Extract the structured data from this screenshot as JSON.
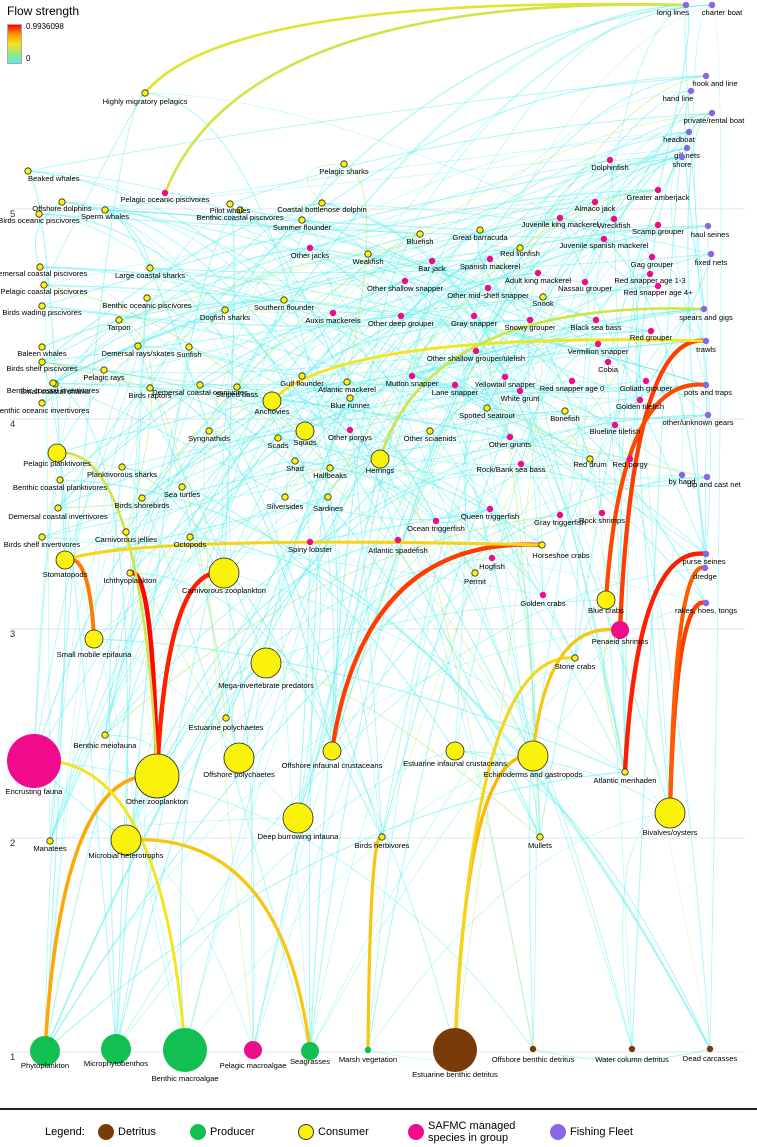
{
  "colorbar": {
    "title": "Flow strength",
    "max": "0.9936098",
    "min": "0",
    "gradient": [
      "#ff0000",
      "#ff9900",
      "#f2e41d",
      "#9ee67a",
      "#55ecec"
    ]
  },
  "colors": {
    "detritus": "#7a3b0a",
    "producer": "#11c050",
    "consumer": "#fbf20b",
    "safmc": "#f00a8c",
    "fleet": "#8866e6",
    "edge_base": "#66f0ef"
  },
  "trophic_levels": [
    "1",
    "2",
    "3",
    "4",
    "5"
  ],
  "legend": {
    "title": "Legend:",
    "items": [
      {
        "label": "Detritus",
        "color": "#7a3b0a"
      },
      {
        "label": "Producer",
        "color": "#11c050"
      },
      {
        "label": "Consumer",
        "color": "#fbf20b"
      },
      {
        "label": "SAFMC managed species in group",
        "line1": "SAFMC managed",
        "line2": "species in group",
        "color": "#f00a8c"
      },
      {
        "label": "Fishing Fleet",
        "color": "#8866e6"
      }
    ]
  },
  "nodes": [
    {
      "name": "Phytoplankton",
      "type": "producer",
      "size": "m"
    },
    {
      "name": "Microphytobenthos",
      "type": "producer",
      "size": "m"
    },
    {
      "name": "Benthic macroalgae",
      "type": "producer",
      "size": "l"
    },
    {
      "name": "Pelagic macroalgae",
      "type": "safmc",
      "size": "s"
    },
    {
      "name": "Seagrasses",
      "type": "producer",
      "size": "s"
    },
    {
      "name": "Marsh vegetation",
      "type": "producer",
      "size": "xs"
    },
    {
      "name": "Estuarine benthic detritus",
      "type": "detritus",
      "size": "l"
    },
    {
      "name": "Offshore benthic detritus",
      "type": "detritus",
      "size": "xs"
    },
    {
      "name": "Water column detritus",
      "type": "detritus",
      "size": "xs"
    },
    {
      "name": "Dead carcasses",
      "type": "detritus",
      "size": "xs"
    },
    {
      "name": "Encrusting fauna",
      "type": "safmc",
      "size": "xl"
    },
    {
      "name": "Other zooplankton",
      "type": "consumer",
      "size": "l"
    },
    {
      "name": "Manatees",
      "type": "consumer",
      "size": "xs"
    },
    {
      "name": "Microbial heterotrophs",
      "type": "consumer",
      "size": "m"
    },
    {
      "name": "Benthic meiofauna",
      "type": "consumer",
      "size": "xs"
    },
    {
      "name": "Offshore polychaetes",
      "type": "consumer",
      "size": "m"
    },
    {
      "name": "Estuarine polychaetes",
      "type": "consumer",
      "size": "xs"
    },
    {
      "name": "Deep burrowing infauna",
      "type": "consumer",
      "size": "m"
    },
    {
      "name": "Birds herbivores",
      "type": "consumer",
      "size": "xs"
    },
    {
      "name": "Offshore infaunal crustaceans",
      "type": "consumer",
      "size": "s"
    },
    {
      "name": "Estuarine infaunal crustaceans",
      "type": "consumer",
      "size": "s"
    },
    {
      "name": "Echinoderms and gastropods",
      "type": "consumer",
      "size": "m"
    },
    {
      "name": "Mullets",
      "type": "consumer",
      "size": "xs"
    },
    {
      "name": "Atlantic menhaden",
      "type": "consumer",
      "size": "xs"
    },
    {
      "name": "Bivalves/oysters",
      "type": "consumer",
      "size": "m"
    },
    {
      "name": "Small mobile epifauna",
      "type": "consumer",
      "size": "s"
    },
    {
      "name": "Mega-invertebrate predators",
      "type": "consumer",
      "size": "m"
    },
    {
      "name": "Stone crabs",
      "type": "consumer",
      "size": "xs"
    },
    {
      "name": "Penaeid shrimps",
      "type": "safmc",
      "size": "s"
    },
    {
      "name": "Stomatopods",
      "type": "consumer",
      "size": "s"
    },
    {
      "name": "Ichthyoplankton",
      "type": "consumer",
      "size": "xs"
    },
    {
      "name": "Carnivorous zooplankton",
      "type": "consumer",
      "size": "m"
    },
    {
      "name": "Spiny lobster",
      "type": "safmc",
      "size": "xs"
    },
    {
      "name": "Atlantic spadefish",
      "type": "safmc",
      "size": "xs"
    },
    {
      "name": "Horseshoe crabs",
      "type": "consumer",
      "size": "xs"
    },
    {
      "name": "Hogfish",
      "type": "safmc",
      "size": "xs"
    },
    {
      "name": "Permit",
      "type": "consumer",
      "size": "xs"
    },
    {
      "name": "Golden crabs",
      "type": "safmc",
      "size": "xs"
    },
    {
      "name": "Blue crabs",
      "type": "consumer",
      "size": "s"
    },
    {
      "name": "Birds shelf invertivores",
      "type": "consumer",
      "size": "xs"
    },
    {
      "name": "Carnivorous jellies",
      "type": "consumer",
      "size": "xs"
    },
    {
      "name": "Octopods",
      "type": "consumer",
      "size": "xs"
    },
    {
      "name": "Demersal coastal invertivores",
      "type": "consumer",
      "size": "xs"
    },
    {
      "name": "Birds shorebirds",
      "type": "consumer",
      "size": "xs"
    },
    {
      "name": "Silversides",
      "type": "consumer",
      "size": "xs"
    },
    {
      "name": "Sardines",
      "type": "consumer",
      "size": "xs"
    },
    {
      "name": "Ocean triggerfish",
      "type": "safmc",
      "size": "xs"
    },
    {
      "name": "Queen triggerfish",
      "type": "safmc",
      "size": "xs"
    },
    {
      "name": "Gray triggerfish",
      "type": "safmc",
      "size": "xs"
    },
    {
      "name": "Rock shrimps",
      "type": "safmc",
      "size": "xs"
    },
    {
      "name": "Benthic coastal planktivores",
      "type": "consumer",
      "size": "xs"
    },
    {
      "name": "Pelagic planktivores",
      "type": "consumer",
      "size": "s"
    },
    {
      "name": "Planktivorous sharks",
      "type": "consumer",
      "size": "xs"
    },
    {
      "name": "Sea turtles",
      "type": "consumer",
      "size": "xs"
    },
    {
      "name": "Syngnathids",
      "type": "consumer",
      "size": "xs"
    },
    {
      "name": "Shad",
      "type": "consumer",
      "size": "xs"
    },
    {
      "name": "Halfbeaks",
      "type": "consumer",
      "size": "xs"
    },
    {
      "name": "Herrings",
      "type": "consumer",
      "size": "s"
    },
    {
      "name": "Rock/Bank sea bass",
      "type": "safmc",
      "size": "xs"
    },
    {
      "name": "Red drum",
      "type": "consumer",
      "size": "xs"
    },
    {
      "name": "Red porgy",
      "type": "safmc",
      "size": "xs"
    },
    {
      "name": "Benthic oceanic invertivores",
      "type": "consumer",
      "size": "xs"
    },
    {
      "name": "Scads",
      "type": "consumer",
      "size": "xs"
    },
    {
      "name": "Squids",
      "type": "consumer",
      "size": "s"
    },
    {
      "name": "Other porgys",
      "type": "safmc",
      "size": "xs"
    },
    {
      "name": "Other sciaenids",
      "type": "consumer",
      "size": "xs"
    },
    {
      "name": "Other grunts",
      "type": "safmc",
      "size": "xs"
    },
    {
      "name": "Blueline tilefish",
      "type": "safmc",
      "size": "xs"
    },
    {
      "name": "Small coastal sharks",
      "type": "consumer",
      "size": "xs"
    },
    {
      "name": "Pelagic rays",
      "type": "consumer",
      "size": "xs"
    },
    {
      "name": "Demersal coastal omnivores",
      "type": "consumer",
      "size": "xs"
    },
    {
      "name": "Anchovies",
      "type": "consumer",
      "size": "s"
    },
    {
      "name": "Blue runner",
      "type": "consumer",
      "size": "xs"
    },
    {
      "name": "Spotted seatrout",
      "type": "consumer",
      "size": "xs"
    },
    {
      "name": "Bonefish",
      "type": "consumer",
      "size": "xs"
    },
    {
      "name": "Golden tilefish",
      "type": "safmc",
      "size": "xs"
    },
    {
      "name": "Benthic coastal invertivores",
      "type": "consumer",
      "size": "xs"
    },
    {
      "name": "Birds raptors",
      "type": "consumer",
      "size": "xs"
    },
    {
      "name": "Striped bass",
      "type": "consumer",
      "size": "xs"
    },
    {
      "name": "Gulf flounder",
      "type": "consumer",
      "size": "xs"
    },
    {
      "name": "Atlantic mackerel",
      "type": "consumer",
      "size": "xs"
    },
    {
      "name": "Mutton snapper",
      "type": "safmc",
      "size": "xs"
    },
    {
      "name": "Lane snapper",
      "type": "safmc",
      "size": "xs"
    },
    {
      "name": "Yellowtail snapper",
      "type": "safmc",
      "size": "xs"
    },
    {
      "name": "White grunt",
      "type": "safmc",
      "size": "xs"
    },
    {
      "name": "Red snapper age 0",
      "type": "safmc",
      "size": "xs"
    },
    {
      "name": "Cobia",
      "type": "safmc",
      "size": "xs"
    },
    {
      "name": "Goliath grouper",
      "type": "safmc",
      "size": "xs"
    },
    {
      "name": "Baleen whales",
      "type": "consumer",
      "size": "xs"
    },
    {
      "name": "Birds shelf piscivores",
      "type": "consumer",
      "size": "xs"
    },
    {
      "name": "Demersal rays/skates",
      "type": "consumer",
      "size": "xs"
    },
    {
      "name": "Sunfish",
      "type": "consumer",
      "size": "xs"
    },
    {
      "name": "Other shallow grouper/tilefish",
      "type": "safmc",
      "size": "xs"
    },
    {
      "name": "Vermilion snapper",
      "type": "safmc",
      "size": "xs"
    },
    {
      "name": "Tarpon",
      "type": "consumer",
      "size": "xs"
    },
    {
      "name": "Benthic oceanic piscivores",
      "type": "consumer",
      "size": "xs"
    },
    {
      "name": "Dogfish sharks",
      "type": "consumer",
      "size": "xs"
    },
    {
      "name": "Southern flounder",
      "type": "consumer",
      "size": "xs"
    },
    {
      "name": "Auxis mackerels",
      "type": "safmc",
      "size": "xs"
    },
    {
      "name": "Other deep grouper",
      "type": "safmc",
      "size": "xs"
    },
    {
      "name": "Gray snapper",
      "type": "safmc",
      "size": "xs"
    },
    {
      "name": "Snowy grouper",
      "type": "safmc",
      "size": "xs"
    },
    {
      "name": "Black sea bass",
      "type": "safmc",
      "size": "xs"
    },
    {
      "name": "Red grouper",
      "type": "safmc",
      "size": "xs"
    },
    {
      "name": "Birds wading piscivores",
      "type": "consumer",
      "size": "xs"
    },
    {
      "name": "Pelagic coastal piscivores",
      "type": "consumer",
      "size": "xs"
    },
    {
      "name": "Large coastal sharks",
      "type": "consumer",
      "size": "xs"
    },
    {
      "name": "Other shallow snapper",
      "type": "safmc",
      "size": "xs"
    },
    {
      "name": "Other mid-shelf snapper",
      "type": "safmc",
      "size": "xs"
    },
    {
      "name": "Snook",
      "type": "consumer",
      "size": "xs"
    },
    {
      "name": "Nassau grouper",
      "type": "safmc",
      "size": "xs"
    },
    {
      "name": "Red snapper age 1-3",
      "type": "safmc",
      "size": "xs"
    },
    {
      "name": "Red snapper age 4+",
      "type": "safmc",
      "size": "xs"
    },
    {
      "name": "Demersal coastal piscivores",
      "type": "consumer",
      "size": "xs"
    },
    {
      "name": "Other jacks",
      "type": "safmc",
      "size": "xs"
    },
    {
      "name": "Weakfish",
      "type": "consumer",
      "size": "xs"
    },
    {
      "name": "Bar jack",
      "type": "safmc",
      "size": "xs"
    },
    {
      "name": "Spanish mackerel",
      "type": "safmc",
      "size": "xs"
    },
    {
      "name": "Adult king mackerel",
      "type": "safmc",
      "size": "xs"
    },
    {
      "name": "Gag grouper",
      "type": "safmc",
      "size": "xs"
    },
    {
      "name": "Birds oceanic piscivores",
      "type": "consumer",
      "size": "xs"
    },
    {
      "name": "Benthic coastal piscivores",
      "type": "consumer",
      "size": "xs"
    },
    {
      "name": "Bluefish",
      "type": "consumer",
      "size": "xs"
    },
    {
      "name": "Great barracuda",
      "type": "consumer",
      "size": "xs"
    },
    {
      "name": "Red lionfish",
      "type": "consumer",
      "size": "xs"
    },
    {
      "name": "Juvenile spanish mackerel",
      "type": "safmc",
      "size": "xs"
    },
    {
      "name": "Offshore dolphins",
      "type": "consumer",
      "size": "xs"
    },
    {
      "name": "Sperm whales",
      "type": "consumer",
      "size": "xs"
    },
    {
      "name": "Pilot whales",
      "type": "consumer",
      "size": "xs"
    },
    {
      "name": "Coastal bottlenose dolphin",
      "type": "consumer",
      "size": "xs"
    },
    {
      "name": "Summer flounder",
      "type": "consumer",
      "size": "xs"
    },
    {
      "name": "Juvenile king mackerel",
      "type": "safmc",
      "size": "xs"
    },
    {
      "name": "Scamp grouper",
      "type": "safmc",
      "size": "xs"
    },
    {
      "name": "Pelagic oceanic piscivores",
      "type": "safmc",
      "size": "xs"
    },
    {
      "name": "Almaco jack",
      "type": "safmc",
      "size": "xs"
    },
    {
      "name": "Wreckfish",
      "type": "safmc",
      "size": "xs"
    },
    {
      "name": "Beaked whales",
      "type": "consumer",
      "size": "xs"
    },
    {
      "name": "Pelagic sharks",
      "type": "consumer",
      "size": "xs"
    },
    {
      "name": "Dolphinfish",
      "type": "safmc",
      "size": "xs"
    },
    {
      "name": "Greater amberjack",
      "type": "safmc",
      "size": "xs"
    },
    {
      "name": "Highly migratory pelagics",
      "type": "consumer",
      "size": "xs"
    },
    {
      "name": "long lines",
      "type": "fleet",
      "size": "xs"
    },
    {
      "name": "charter boat",
      "type": "fleet",
      "size": "xs"
    },
    {
      "name": "hook and line",
      "type": "fleet",
      "size": "xs"
    },
    {
      "name": "hand line",
      "type": "fleet",
      "size": "xs"
    },
    {
      "name": "private/rental boat",
      "type": "fleet",
      "size": "xs"
    },
    {
      "name": "headboat",
      "type": "fleet",
      "size": "xs"
    },
    {
      "name": "gill nets",
      "type": "fleet",
      "size": "xs"
    },
    {
      "name": "shore",
      "type": "fleet",
      "size": "xs"
    },
    {
      "name": "haul seines",
      "type": "fleet",
      "size": "xs"
    },
    {
      "name": "fixed nets",
      "type": "fleet",
      "size": "xs"
    },
    {
      "name": "spears and gigs",
      "type": "fleet",
      "size": "xs"
    },
    {
      "name": "trawls",
      "type": "fleet",
      "size": "xs"
    },
    {
      "name": "pots and traps",
      "type": "fleet",
      "size": "xs"
    },
    {
      "name": "other/unknown gears",
      "type": "fleet",
      "size": "xs"
    },
    {
      "name": "by hand",
      "type": "fleet",
      "size": "xs"
    },
    {
      "name": "dip and cast net",
      "type": "fleet",
      "size": "xs"
    },
    {
      "name": "purse seines",
      "type": "fleet",
      "size": "xs"
    },
    {
      "name": "dredge",
      "type": "fleet",
      "size": "xs"
    },
    {
      "name": "rakes, hoes, tongs",
      "type": "fleet",
      "size": "xs"
    }
  ],
  "flows": [
    {
      "from": "Other zooplankton",
      "to": "Ichthyoplankton",
      "strength": 0.99
    },
    {
      "from": "Other zooplankton",
      "to": "Carnivorous zooplankton",
      "strength": 0.95
    },
    {
      "from": "Offshore infaunal crustaceans",
      "to": "Horseshoe crabs",
      "strength": 0.9
    },
    {
      "from": "Atlantic menhaden",
      "to": "purse seines",
      "strength": 0.95
    },
    {
      "from": "Bivalves/oysters",
      "to": "rakes, hoes, tongs",
      "strength": 0.9
    },
    {
      "from": "Bivalves/oysters",
      "to": "dredge",
      "strength": 0.85
    },
    {
      "from": "Penaeid shrimps",
      "to": "trawls",
      "strength": 0.9
    },
    {
      "from": "Blue crabs",
      "to": "pots and traps",
      "strength": 0.88
    },
    {
      "from": "Small mobile epifauna",
      "to": "Stomatopods",
      "strength": 0.8
    },
    {
      "from": "Phytoplankton",
      "to": "Other zooplankton",
      "strength": 0.7
    },
    {
      "from": "Estuarine benthic detritus",
      "to": "Echinoderms and gastropods",
      "strength": 0.65
    },
    {
      "from": "Estuarine benthic detritus",
      "to": "Stone crabs",
      "strength": 0.55
    },
    {
      "from": "Benthic macroalgae",
      "to": "Encrusting fauna",
      "strength": 0.5
    },
    {
      "from": "Microbial heterotrophs",
      "to": "Seagrasses",
      "strength": 0.6
    },
    {
      "from": "Marsh vegetation",
      "to": "Birds herbivores",
      "strength": 0.6
    },
    {
      "from": "Echinoderms and gastropods",
      "to": "Penaeid shrimps",
      "strength": 0.6
    },
    {
      "from": "Anchovies",
      "to": "trawls",
      "strength": 0.5
    },
    {
      "from": "Stomatopods",
      "to": "Horseshoe crabs",
      "strength": 0.55
    },
    {
      "from": "Highly migratory pelagics",
      "to": "long lines",
      "strength": 0.45
    },
    {
      "from": "Pelagic oceanic piscivores",
      "to": "long lines",
      "strength": 0.4
    },
    {
      "from": "Other zooplankton",
      "to": "Pelagic planktivores",
      "strength": 0.4
    },
    {
      "from": "Herrings",
      "to": "spears and gigs",
      "strength": 0.4
    }
  ]
}
